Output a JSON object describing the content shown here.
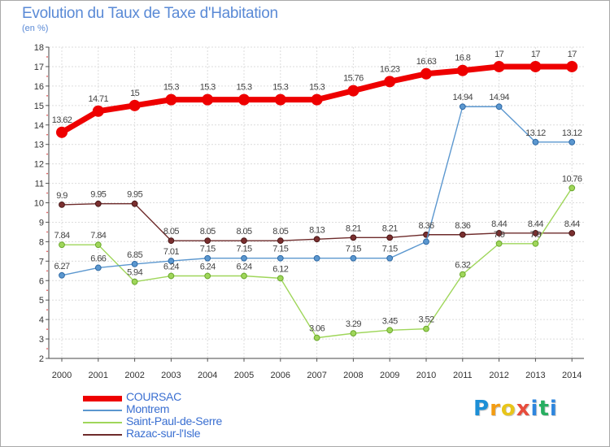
{
  "title": "Evolution du Taux de Taxe d'Habitation",
  "subtitle": "(en %)",
  "logo": {
    "letters": [
      "P",
      "r",
      "o",
      "x",
      "i",
      "t",
      "i"
    ],
    "colors": [
      "#1d8fd6",
      "#f39c12",
      "#e8c51a",
      "#e74c3c",
      "#2e86de",
      "#27ae60",
      "#2e86de"
    ]
  },
  "chart_data": {
    "type": "line",
    "title": "Evolution du Taux de Taxe d'Habitation",
    "ylabel": "(en %)",
    "xlabel": "",
    "ylim": [
      2,
      18
    ],
    "yticks": [
      2,
      3,
      4,
      5,
      6,
      7,
      8,
      9,
      10,
      11,
      12,
      13,
      14,
      15,
      16,
      17,
      18
    ],
    "grid": true,
    "legend_position": "bottom-left",
    "x": [
      "2000",
      "2001",
      "2002",
      "2003",
      "2004",
      "2005",
      "2006",
      "2007",
      "2008",
      "2009",
      "2010",
      "2011",
      "2012",
      "2013",
      "2014"
    ],
    "series": [
      {
        "name": "COURSAC",
        "color": "#ee0000",
        "values": [
          13.62,
          14.71,
          15,
          15.3,
          15.3,
          15.3,
          15.3,
          15.3,
          15.76,
          16.23,
          16.63,
          16.8,
          17,
          17,
          17
        ],
        "labels": [
          "13.62",
          "14.71",
          "15",
          "15.3",
          "15.3",
          "15.3",
          "15.3",
          "15.3",
          "15.76",
          "16.23",
          "16.63",
          "16.8",
          "17",
          "17",
          "17"
        ]
      },
      {
        "name": "Montrem",
        "color": "#5b97cf",
        "values": [
          6.27,
          6.66,
          6.85,
          7.01,
          7.15,
          7.15,
          7.15,
          7.15,
          7.15,
          7.15,
          8,
          14.94,
          14.94,
          13.12,
          13.12
        ],
        "labels": [
          "6.27",
          "6.66",
          "6.85",
          "7.01",
          "7.15",
          "7.15",
          "7.15",
          "",
          "7.15",
          "7.15",
          "",
          "14.94",
          "14.94",
          "13.12",
          "13.12"
        ]
      },
      {
        "name": "Saint-Paul-de-Serre",
        "color": "#9fd65a",
        "values": [
          7.84,
          7.84,
          5.94,
          6.24,
          6.24,
          6.24,
          6.12,
          3.06,
          3.29,
          3.45,
          3.52,
          6.32,
          7.9,
          7.9,
          10.76
        ],
        "labels": [
          "7.84",
          "7.84",
          "5.94",
          "6.24",
          "6.24",
          "6.24",
          "6.12",
          "3.06",
          "3.29",
          "3.45",
          "3.52",
          "6.32",
          "7.9",
          "7.9",
          "10.76"
        ]
      },
      {
        "name": "Razac-sur-l'Isle",
        "color": "#6e2b2b",
        "values": [
          9.9,
          9.95,
          9.95,
          8.05,
          8.05,
          8.05,
          8.05,
          8.13,
          8.21,
          8.21,
          8.36,
          8.36,
          8.44,
          8.44,
          8.44
        ],
        "labels": [
          "9.9",
          "9.95",
          "9.95",
          "8.05",
          "8.05",
          "8.05",
          "8.05",
          "8.13",
          "8.21",
          "8.21",
          "8.36",
          "8.36",
          "8.44",
          "8.44",
          "8.44"
        ]
      }
    ]
  }
}
